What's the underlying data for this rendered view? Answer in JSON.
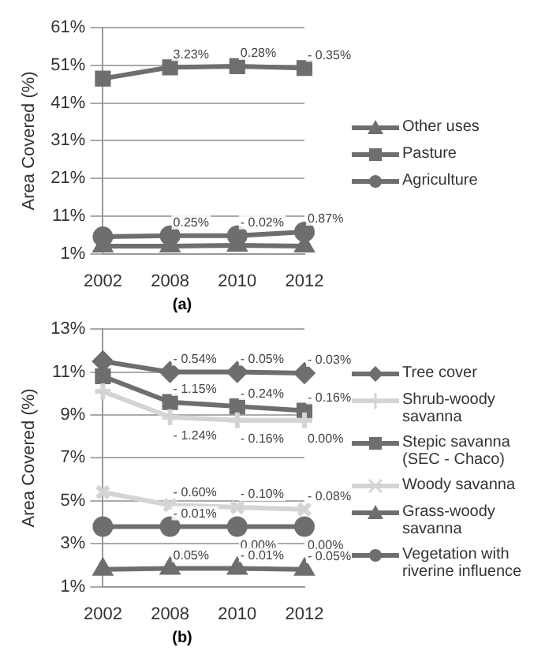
{
  "chart_data": [
    {
      "type": "line",
      "ylabel": "Area Covered (%)",
      "categories": [
        "2002",
        "2008",
        "2010",
        "2012"
      ],
      "ylim": [
        1,
        61
      ],
      "yticks": [
        {
          "value": 1,
          "label": "1%"
        },
        {
          "value": 11,
          "label": "11%"
        },
        {
          "value": 21,
          "label": "21%"
        },
        {
          "value": 31,
          "label": "31%"
        },
        {
          "value": 41,
          "label": "41%"
        },
        {
          "value": 51,
          "label": "51%"
        },
        {
          "value": 61,
          "label": "61%"
        }
      ],
      "grid": "y",
      "legend": "right",
      "series": [
        {
          "name": "Other uses",
          "color": "#6e6e6e",
          "marker": "triangle",
          "values": [
            3.0,
            3.0,
            3.2,
            3.0
          ]
        },
        {
          "name": "Pasture",
          "color": "#6e6e6e",
          "marker": "square",
          "values": [
            47.5,
            50.5,
            50.8,
            50.3
          ]
        },
        {
          "name": "Agriculture",
          "color": "#6e6e6e",
          "marker": "circle",
          "values": [
            5.5,
            5.8,
            5.8,
            6.8
          ]
        }
      ],
      "annotations": [
        {
          "text": "3.23%",
          "x": "2008",
          "y": 50.5
        },
        {
          "text": "0.28%",
          "x": "2010",
          "y": 50.8
        },
        {
          "text": "- 0.35%",
          "x": "2012",
          "y": 50.3
        },
        {
          "text": "0.25%",
          "x": "2008",
          "y": 5.8
        },
        {
          "text": "- 0.02%",
          "x": "2010",
          "y": 5.8
        },
        {
          "text": "0.87%",
          "x": "2012",
          "y": 6.8
        },
        "(a)"
      ]
    },
    {
      "type": "line",
      "ylabel": "Area Covered (%)",
      "categories": [
        "2002",
        "2008",
        "2010",
        "2012"
      ],
      "ylim": [
        1,
        13
      ],
      "yticks": [
        {
          "value": 1,
          "label": "1%"
        },
        {
          "value": 3,
          "label": "3%"
        },
        {
          "value": 5,
          "label": "5%"
        },
        {
          "value": 7,
          "label": "7%"
        },
        {
          "value": 9,
          "label": "9%"
        },
        {
          "value": 11,
          "label": "11%"
        },
        {
          "value": 13,
          "label": "13%"
        }
      ],
      "grid": "y",
      "legend": "right",
      "series": [
        {
          "name": "Tree cover",
          "color": "#6e6e6e",
          "marker": "diamond",
          "values": [
            11.5,
            11.0,
            11.0,
            10.95
          ]
        },
        {
          "name": "Shrub-woody savanna",
          "color": "#d4d4d4",
          "marker": "plus",
          "values": [
            10.1,
            8.9,
            8.75,
            8.75
          ]
        },
        {
          "name": "Stepic savanna (SEC - Chaco)",
          "color": "#6e6e6e",
          "marker": "square",
          "values": [
            10.8,
            9.6,
            9.4,
            9.2
          ]
        },
        {
          "name": "Woody savanna",
          "color": "#d4d4d4",
          "marker": "cross",
          "values": [
            5.4,
            4.8,
            4.7,
            4.6
          ]
        },
        {
          "name": "Grass-woody savanna",
          "color": "#6e6e6e",
          "marker": "triangle",
          "values": [
            1.8,
            1.85,
            1.85,
            1.8
          ]
        },
        {
          "name": "Vegetation with riverine influence",
          "color": "#6e6e6e",
          "marker": "circle",
          "values": [
            3.8,
            3.8,
            3.8,
            3.8
          ]
        }
      ],
      "annotations": [
        {
          "text": "- 0.54%",
          "x": "2008",
          "y": 11.0
        },
        {
          "text": "- 0.05%",
          "x": "2010",
          "y": 11.0
        },
        {
          "text": "- 0.03%",
          "x": "2012",
          "y": 10.95
        },
        {
          "text": "- 1.15%",
          "x": "2008",
          "y": 9.6
        },
        {
          "text": "- 0.24%",
          "x": "2010",
          "y": 9.4
        },
        {
          "text": "- 0.16%",
          "x": "2012",
          "y": 9.2
        },
        {
          "text": "- 1.24%",
          "x": "2008",
          "y": 8.9
        },
        {
          "text": "- 0.16%",
          "x": "2010",
          "y": 8.75
        },
        {
          "text": "0.00%",
          "x": "2012",
          "y": 8.75
        },
        {
          "text": "- 0.60%",
          "x": "2008",
          "y": 4.8
        },
        {
          "text": "- 0.10%",
          "x": "2010",
          "y": 4.7
        },
        {
          "text": "- 0.08%",
          "x": "2012",
          "y": 4.6
        },
        {
          "text": "- 0.01%",
          "x": "2008",
          "y": 3.8
        },
        {
          "text": "0.00%",
          "x": "2010",
          "y": 3.8
        },
        {
          "text": "0.00%",
          "x": "2012",
          "y": 3.8
        },
        {
          "text": "0.05%",
          "x": "2008",
          "y": 1.85
        },
        {
          "text": "- 0.01%",
          "x": "2010",
          "y": 1.85
        },
        {
          "text": "- 0.05%",
          "x": "2012",
          "y": 1.8
        },
        "(b)"
      ]
    }
  ]
}
